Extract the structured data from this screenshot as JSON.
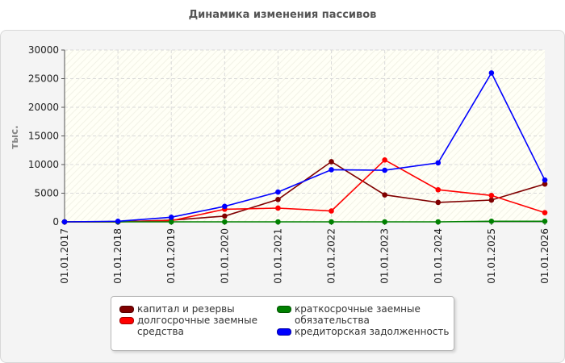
{
  "chart_data": {
    "type": "line",
    "title": "Динамика изменения пассивов",
    "ylabel": "тыс.",
    "xlabel": "",
    "categories": [
      "01.01.2017",
      "01.01.2018",
      "01.01.2019",
      "01.01.2020",
      "01.01.2021",
      "01.01.2022",
      "01.01.2023",
      "01.01.2024",
      "01.01.2025",
      "01.01.2026"
    ],
    "ylim": [
      0,
      30000
    ],
    "yticks": [
      0,
      5000,
      10000,
      15000,
      20000,
      25000,
      30000
    ],
    "grid": true,
    "legend_position": "bottom",
    "series": [
      {
        "name": "капитал и резервы",
        "color": "#800000",
        "values": [
          0,
          0,
          300,
          1000,
          3900,
          10500,
          4700,
          3400,
          3800,
          6600
        ]
      },
      {
        "name": "долгосрочные заемные\nсредства",
        "color": "#ff0000",
        "values": [
          0,
          0,
          200,
          2200,
          2400,
          1900,
          10800,
          5600,
          4600,
          1600
        ]
      },
      {
        "name": "краткосрочные заемные\nобязательства",
        "color": "#008000",
        "values": [
          0,
          0,
          0,
          0,
          0,
          0,
          0,
          0,
          100,
          100
        ]
      },
      {
        "name": "кредиторская задолженность",
        "color": "#0000ff",
        "values": [
          0,
          100,
          800,
          2700,
          5200,
          9100,
          9000,
          10300,
          26000,
          7300
        ]
      }
    ]
  }
}
